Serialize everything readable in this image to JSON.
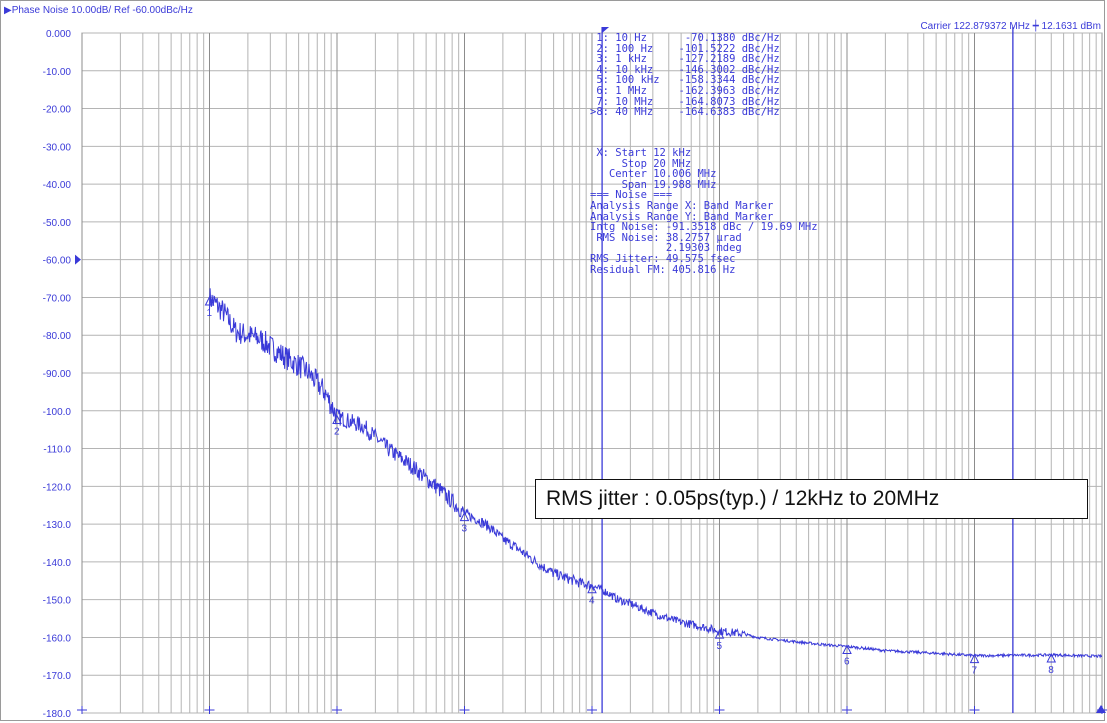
{
  "header": {
    "title": "▶Phase Noise 10.00dB/ Ref -60.00dBc/Hz",
    "carrier": "Carrier 122.879372 MHz ┿  12.1631 dBm"
  },
  "marker_table": [
    {
      "idx": " 1:",
      "freq": "10 Hz",
      "value": "-70.1380 dBc/Hz"
    },
    {
      "idx": " 2:",
      "freq": "100 Hz",
      "value": "-101.5222 dBc/Hz"
    },
    {
      "idx": " 3:",
      "freq": "1 kHz",
      "value": "-127.2189 dBc/Hz"
    },
    {
      "idx": " 4:",
      "freq": "10 kHz",
      "value": "-146.3002 dBc/Hz"
    },
    {
      "idx": " 5:",
      "freq": "100 kHz",
      "value": "-158.3344 dBc/Hz"
    },
    {
      "idx": " 6:",
      "freq": "1 MHz",
      "value": "-162.3963 dBc/Hz"
    },
    {
      "idx": " 7:",
      "freq": "10 MHz",
      "value": "-164.8073 dBc/Hz"
    },
    {
      "idx": ">8:",
      "freq": "40 MHz",
      "value": "-164.6383 dBc/Hz"
    }
  ],
  "analysis_lines": [
    " X: Start 12 kHz",
    "     Stop 20 MHz",
    "   Center 10.006 MHz",
    "     Span 19.988 MHz",
    "=== Noise ===",
    "Analysis Range X: Band Marker",
    "Analysis Range Y: Band Marker",
    "Intg Noise: -91.3518 dBc / 19.69 MHz",
    " RMS Noise: 38.2757 µrad",
    "            2.19303 mdeg",
    "RMS Jitter: 49.575 fsec",
    "Residual FM: 405.816 Hz"
  ],
  "jitter_note": "RMS jitter : 0.05ps(typ.)  /  12kHz to 20MHz",
  "colors": {
    "trace": "#3a3ad8",
    "grid": "#b4b4b4",
    "axis_text": "#3a3ad8",
    "band_marker": "#3a3ad8"
  },
  "chart_data": {
    "type": "line",
    "title": "Phase Noise 10.00dB/ Ref -60.00dBc/Hz",
    "xscale": "log",
    "xlim": [
      1,
      100000000
    ],
    "ylim": [
      -180,
      0
    ],
    "y_ticks": [
      "0.000",
      "-10.00",
      "-20.00",
      "-30.00",
      "-40.00",
      "-50.00",
      "-60.00",
      "-70.00",
      "-80.00",
      "-90.00",
      "-100.0",
      "-110.0",
      "-120.0",
      "-130.0",
      "-140.0",
      "-150.0",
      "-160.0",
      "-170.0",
      "-180.0"
    ],
    "ref_level": -60,
    "grid": true,
    "band_markers_hz": [
      12000,
      20000000
    ],
    "series": [
      {
        "x": [
          10,
          13,
          16,
          20,
          25,
          30,
          40,
          50,
          60,
          80,
          100,
          130,
          160,
          200,
          250,
          300,
          400,
          500,
          600,
          800,
          1000,
          1300,
          1600,
          2000,
          2500,
          3000,
          4000,
          5000,
          6000,
          8000,
          10000,
          13000,
          16000,
          20000,
          25000,
          30000,
          40000,
          50000,
          60000,
          80000,
          100000,
          150000,
          200000,
          300000,
          500000,
          700000,
          1000000,
          1500000,
          2000000,
          3000000,
          5000000,
          7000000,
          10000000,
          15000000,
          20000000,
          30000000,
          40000000,
          60000000,
          80000000,
          100000000
        ],
        "y": [
          -70.1,
          -74,
          -79,
          -80,
          -81,
          -83,
          -86,
          -88,
          -90,
          -95,
          -101.5,
          -103,
          -104,
          -107,
          -110,
          -112,
          -115,
          -118,
          -120,
          -124,
          -127.2,
          -129,
          -131,
          -134,
          -136,
          -138,
          -141,
          -143,
          -144,
          -145.5,
          -146.3,
          -148,
          -150,
          -151,
          -152.5,
          -153.5,
          -155,
          -156,
          -156.5,
          -157.5,
          -158.3,
          -159,
          -160,
          -160.7,
          -161.5,
          -162,
          -162.4,
          -163,
          -163.5,
          -163.8,
          -164.2,
          -164.5,
          -164.8,
          -164.8,
          -164.7,
          -164.7,
          -164.6,
          -164.8,
          -164.9,
          -165
        ]
      }
    ],
    "markers": [
      {
        "label": "1",
        "x": 10,
        "y": -70.138
      },
      {
        "label": "2",
        "x": 100,
        "y": -101.5222
      },
      {
        "label": "3",
        "x": 1000,
        "y": -127.2189
      },
      {
        "label": "4",
        "x": 10000,
        "y": -146.3002
      },
      {
        "label": "5",
        "x": 100000,
        "y": -158.3344
      },
      {
        "label": "6",
        "x": 1000000,
        "y": -162.3963
      },
      {
        "label": "7",
        "x": 10000000,
        "y": -164.8073
      },
      {
        "label": "8",
        "x": 40000000,
        "y": -164.6383
      }
    ]
  }
}
